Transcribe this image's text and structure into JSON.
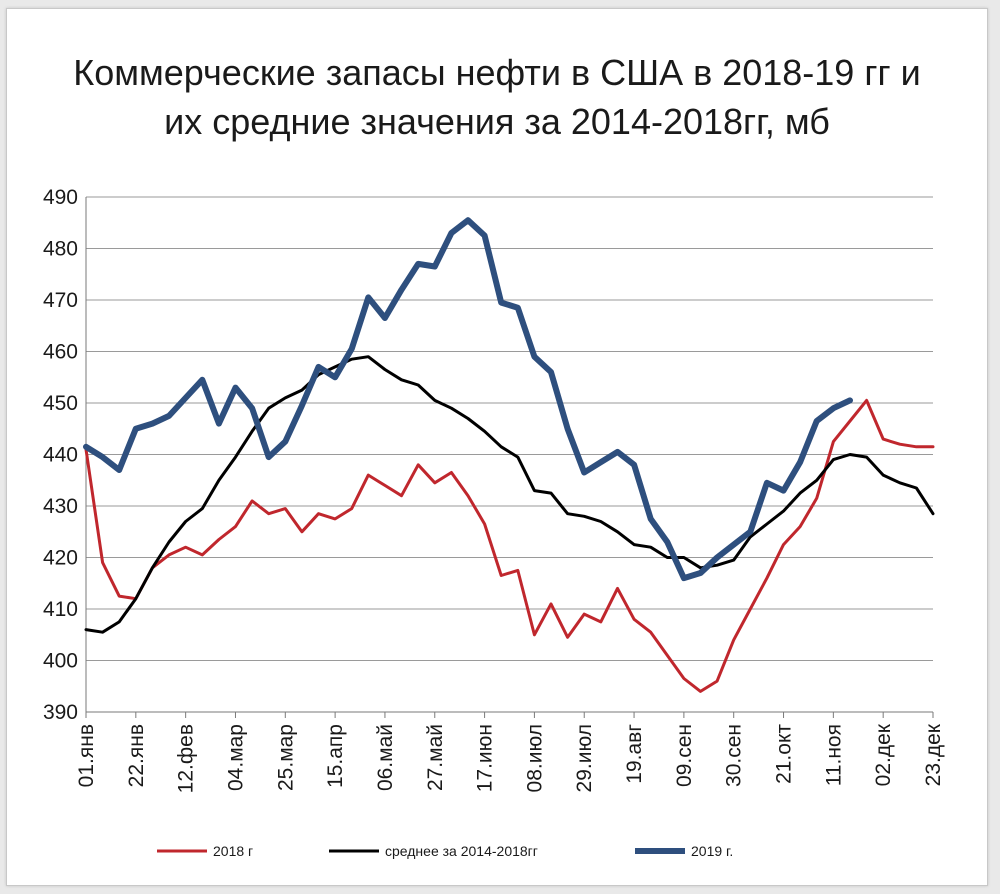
{
  "chart_data": {
    "type": "line",
    "title_lines": [
      "Коммерческие запасы нефти в США в 2018-19 гг и",
      "их средние значения за  2014-2018гг, мб"
    ],
    "ylim": [
      390,
      490
    ],
    "yticks": [
      390,
      400,
      410,
      420,
      430,
      440,
      450,
      460,
      470,
      480,
      490
    ],
    "grid": "horizontal",
    "x_tick_labels": [
      "01.янв",
      "22.янв",
      "12.фев",
      "04.мар",
      "25.мар",
      "15.апр",
      "06.май",
      "27.май",
      "17.июн",
      "08.июл",
      "29.июл",
      "19.авг",
      "09.сен",
      "30.сен",
      "21.окт",
      "11.ноя",
      "02.дек",
      "23.дек"
    ],
    "x_tick_weeks": [
      0,
      3,
      6,
      9,
      12,
      15,
      18,
      21,
      24,
      27,
      30,
      33,
      36,
      39,
      42,
      45,
      48,
      51
    ],
    "legend_position": "bottom",
    "series": [
      {
        "name": "2018 г",
        "color": "#c0272d",
        "x": [
          0,
          1,
          2,
          3,
          4,
          5,
          6,
          7,
          8,
          9,
          10,
          11,
          12,
          13,
          14,
          15,
          16,
          17,
          18,
          19,
          20,
          21,
          22,
          23,
          24,
          25,
          26,
          27,
          28,
          29,
          30,
          31,
          32,
          33,
          34,
          35,
          36,
          37,
          38,
          39,
          40,
          41,
          42,
          43,
          44,
          45,
          46,
          47,
          48,
          49,
          50,
          51
        ],
        "values": [
          441.0,
          419.0,
          412.5,
          412.0,
          418.0,
          420.5,
          422.0,
          420.5,
          423.5,
          426.0,
          431.0,
          428.5,
          429.5,
          425.0,
          428.5,
          427.5,
          429.5,
          436.0,
          434.0,
          432.0,
          438.0,
          434.5,
          436.5,
          432.0,
          426.5,
          416.5,
          417.5,
          405.0,
          411.0,
          404.5,
          409.0,
          407.5,
          414.0,
          408.0,
          405.5,
          401.0,
          396.5,
          394.0,
          396.0,
          404.0,
          410.0,
          416.0,
          422.5,
          426.0,
          431.5,
          442.5,
          446.5,
          450.5,
          443.0,
          442.0,
          441.5,
          441.5
        ]
      },
      {
        "name": "среднее за 2014-2018гг",
        "color": "#000000",
        "x": [
          0,
          1,
          2,
          3,
          4,
          5,
          6,
          7,
          8,
          9,
          10,
          11,
          12,
          13,
          14,
          15,
          16,
          17,
          18,
          19,
          20,
          21,
          22,
          23,
          24,
          25,
          26,
          27,
          28,
          29,
          30,
          31,
          32,
          33,
          34,
          35,
          36,
          37,
          38,
          39,
          40,
          41,
          42,
          43,
          44,
          45,
          46,
          47,
          48,
          49,
          50,
          51
        ],
        "values": [
          406.0,
          405.5,
          407.5,
          412.0,
          418.0,
          423.0,
          427.0,
          429.5,
          435.0,
          439.5,
          444.5,
          449.0,
          451.0,
          452.5,
          455.5,
          457.0,
          458.5,
          459.0,
          456.5,
          454.5,
          453.5,
          450.5,
          449.0,
          447.0,
          444.5,
          441.5,
          439.5,
          433.0,
          432.5,
          428.5,
          428.0,
          427.0,
          425.0,
          422.5,
          422.0,
          420.0,
          420.0,
          418.0,
          418.5,
          419.5,
          424.0,
          426.5,
          429.0,
          432.5,
          435.0,
          439.0,
          440.0,
          439.5,
          436.0,
          434.5,
          433.5,
          428.5
        ]
      },
      {
        "name": "2019 г.",
        "color": "#2e4f7e",
        "x": [
          0,
          1,
          2,
          3,
          4,
          5,
          6,
          7,
          8,
          9,
          10,
          11,
          12,
          13,
          14,
          15,
          16,
          17,
          18,
          19,
          20,
          21,
          22,
          23,
          24,
          25,
          26,
          27,
          28,
          29,
          30,
          31,
          32,
          33,
          34,
          35,
          36,
          37,
          38,
          39,
          40,
          41,
          42,
          43,
          44,
          45,
          46
        ],
        "values": [
          441.5,
          439.5,
          437.0,
          445.0,
          446.0,
          447.5,
          451.0,
          454.5,
          446.0,
          453.0,
          449.0,
          439.5,
          442.5,
          449.5,
          457.0,
          455.0,
          460.5,
          470.5,
          466.5,
          472.0,
          477.0,
          476.5,
          483.0,
          485.5,
          482.5,
          469.5,
          468.5,
          459.0,
          456.0,
          445.0,
          436.5,
          438.5,
          440.5,
          438.0,
          427.5,
          423.0,
          416.0,
          417.0,
          420.0,
          422.5,
          425.0,
          434.5,
          433.0,
          438.5,
          446.5,
          449.0,
          450.5
        ]
      }
    ]
  }
}
